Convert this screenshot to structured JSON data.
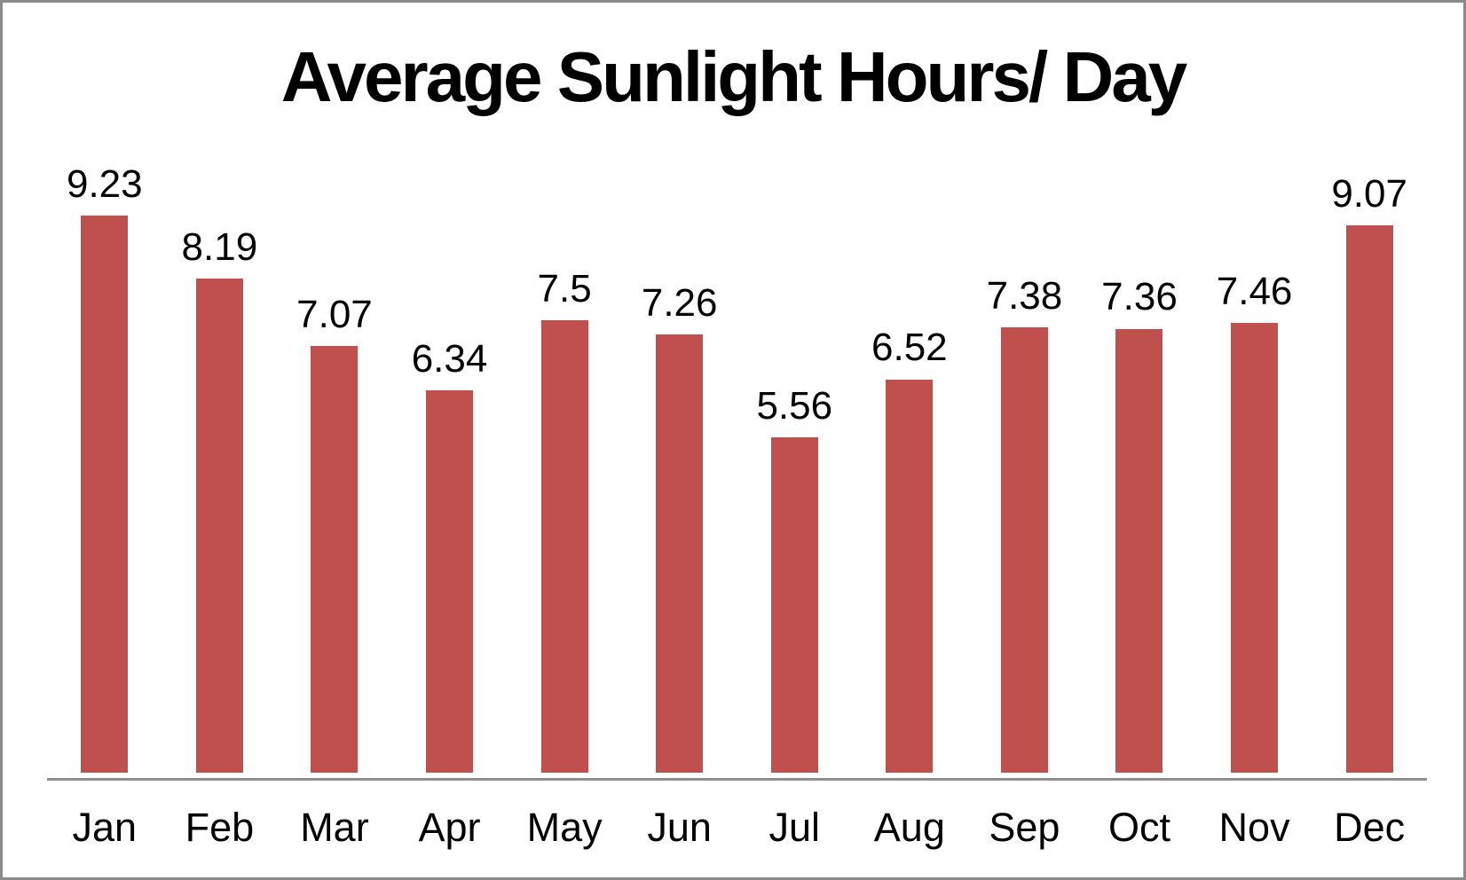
{
  "frame": {
    "background": "#ffffff",
    "border_color": "#8a8a8a"
  },
  "chart_data": {
    "type": "bar",
    "title": "Average Sunlight Hours/ Day",
    "categories": [
      "Jan",
      "Feb",
      "Mar",
      "Apr",
      "May",
      "Jun",
      "Jul",
      "Aug",
      "Sep",
      "Oct",
      "Nov",
      "Dec"
    ],
    "values": [
      9.23,
      8.19,
      7.07,
      6.34,
      7.5,
      7.26,
      5.56,
      6.52,
      7.38,
      7.36,
      7.46,
      9.07
    ],
    "data_labels": [
      "9.23",
      "8.19",
      "7.07",
      "6.34",
      "7.5",
      "7.26",
      "5.56",
      "6.52",
      "7.38",
      "7.36",
      "7.46",
      "9.07"
    ],
    "xlabel": "",
    "ylabel": "",
    "ylim": [
      0,
      10
    ],
    "grid": false,
    "legend": false,
    "y_axis_visible": false,
    "bar_color": "#c0504d",
    "axis_line_color": "#8f8f8f",
    "text_color": "#000000"
  }
}
